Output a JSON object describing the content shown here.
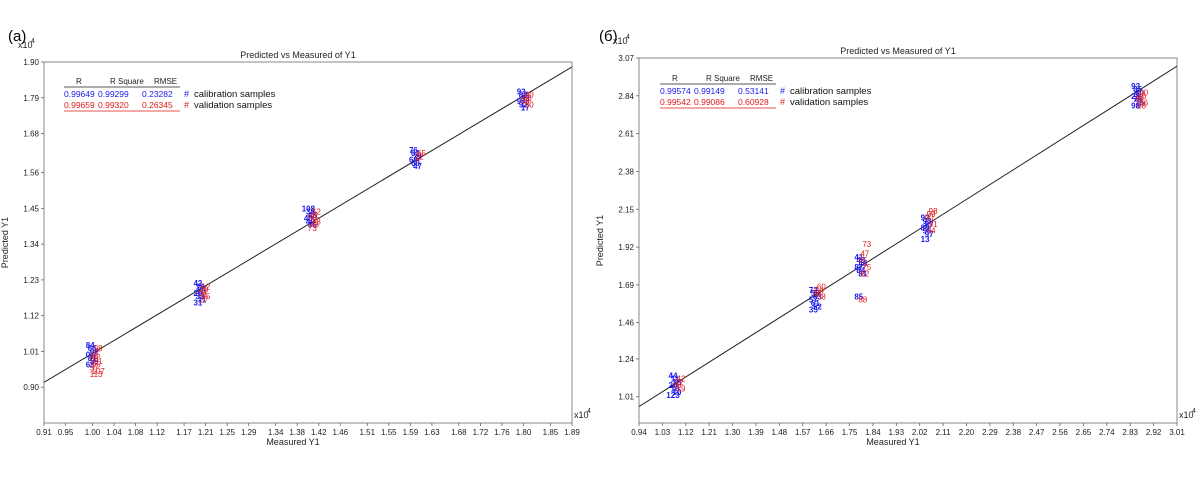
{
  "panels": [
    {
      "label": "(a)",
      "chart": {
        "type": "scatter",
        "title": "Predicted vs Measured of Y1",
        "xlabel": "Measured Y1",
        "ylabel": "Predicted Y1",
        "x_multiplier": "x10",
        "x_multiplier_exp": "4",
        "y_multiplier": "x10",
        "y_multiplier_exp": "4",
        "xlim": [
          0.91,
          1.89
        ],
        "ylim": [
          0.79,
          1.9
        ],
        "x_ticks": [
          "0.91",
          "0.95",
          "1.00",
          "1.04",
          "1.08",
          "1.12",
          "1.17",
          "1.21",
          "1.25",
          "1.29",
          "1.34",
          "1.38",
          "1.42",
          "1.46",
          "1.51",
          "1.55",
          "1.59",
          "1.63",
          "1.68",
          "1.72",
          "1.76",
          "1.80",
          "1.85",
          "1.89"
        ],
        "y_ticks": [
          "0.90",
          "1.01",
          "1.12",
          "1.23",
          "1.34",
          "1.45",
          "1.56",
          "1.68",
          "1.79",
          "1.90"
        ],
        "fit_line": [
          [
            0.91,
            0.915
          ],
          [
            1.89,
            1.885
          ]
        ],
        "stats_header": [
          "R",
          "R Square",
          "RMSE"
        ],
        "stats": [
          {
            "name": "calibration samples",
            "R": "0.99649",
            "R_Square": "0.99299",
            "RMSE": "0.23282",
            "color": "#1a1aee"
          },
          {
            "name": "validation samples",
            "R": "0.99659",
            "R_Square": "0.99320",
            "RMSE": "0.26345",
            "color": "#e01a1a"
          }
        ],
        "legend_symbol": "#",
        "clusters": [
          {
            "x": 1.005,
            "calibration_y": [
              1.03,
              1.02,
              1.01,
              1.0,
              0.99,
              0.98,
              0.97
            ],
            "validation_y": [
              1.02,
              1.0,
              0.99,
              0.98,
              0.97,
              0.96,
              0.95,
              0.94
            ],
            "calibration_labels": [
              "84",
              "66",
              "02",
              "07",
              "81",
              "59",
              "68"
            ],
            "validation_labels": [
              "98",
              "85",
              "88",
              "01",
              "95",
              "57",
              "107",
              "113"
            ]
          },
          {
            "x": 1.205,
            "calibration_y": [
              1.22,
              1.21,
              1.2,
              1.19,
              1.18,
              1.17,
              1.16
            ],
            "validation_y": [
              1.21,
              1.2,
              1.19,
              1.18,
              1.17
            ],
            "calibration_labels": [
              "42",
              "18",
              "24",
              "20",
              "33",
              "11",
              "31"
            ],
            "validation_labels": [
              "12",
              "29",
              "16",
              "35",
              "27"
            ]
          },
          {
            "x": 1.41,
            "calibration_y": [
              1.45,
              1.44,
              1.43,
              1.42,
              1.41,
              1.4
            ],
            "validation_y": [
              1.44,
              1.43,
              1.42,
              1.41,
              1.4,
              1.39
            ],
            "calibration_labels": [
              "108",
              "38",
              "45",
              "40",
              "49",
              "36"
            ],
            "validation_labels": [
              "52",
              "41",
              "56",
              "48",
              "43",
              "73"
            ]
          },
          {
            "x": 1.605,
            "calibration_y": [
              1.63,
              1.62,
              1.61,
              1.6,
              1.59,
              1.58
            ],
            "validation_y": [
              1.62,
              1.61,
              1.6
            ],
            "calibration_labels": [
              "76",
              "62",
              "79",
              "69",
              "60",
              "47"
            ],
            "validation_labels": [
              "65",
              "72",
              "5"
            ]
          },
          {
            "x": 1.805,
            "calibration_y": [
              1.81,
              1.8,
              1.79,
              1.78,
              1.77,
              1.76
            ],
            "validation_y": [
              1.8,
              1.79,
              1.78,
              1.77
            ],
            "calibration_labels": [
              "93",
              "82",
              "83",
              "97",
              "92",
              "17"
            ],
            "validation_labels": [
              "90",
              "86",
              "99",
              "80"
            ]
          }
        ]
      }
    },
    {
      "label": "(б)",
      "chart": {
        "type": "scatter",
        "title": "Predicted vs Measured of Y1",
        "xlabel": "Measured Y1",
        "ylabel": "Predicted Y1",
        "x_multiplier": "x10",
        "x_multiplier_exp": "4",
        "y_multiplier": "x10",
        "y_multiplier_exp": "4",
        "xlim": [
          0.94,
          3.01
        ],
        "ylim": [
          0.85,
          3.07
        ],
        "x_ticks": [
          "0.94",
          "1.03",
          "1.12",
          "1.21",
          "1.30",
          "1.39",
          "1.48",
          "1.57",
          "1.66",
          "1.75",
          "1.84",
          "1.93",
          "2.02",
          "2.11",
          "2.20",
          "2.29",
          "2.38",
          "2.47",
          "2.56",
          "2.65",
          "2.74",
          "2.83",
          "2.92",
          "3.01"
        ],
        "y_ticks": [
          "1.01",
          "1.24",
          "1.46",
          "1.69",
          "1.92",
          "2.15",
          "2.38",
          "2.61",
          "2.84",
          "3.07"
        ],
        "fit_line": [
          [
            0.94,
            0.95
          ],
          [
            3.01,
            3.02
          ]
        ],
        "stats_header": [
          "R",
          "R Square",
          "RMSE"
        ],
        "stats": [
          {
            "name": "calibration samples",
            "R": "0.99574",
            "R_Square": "0.99149",
            "RMSE": "0.53141",
            "color": "#1a1aee"
          },
          {
            "name": "validation samples",
            "R": "0.99542",
            "R_Square": "0.99086",
            "RMSE": "0.60928",
            "color": "#e01a1a"
          }
        ],
        "legend_symbol": "#",
        "clusters": [
          {
            "x": 1.09,
            "calibration_y": [
              1.14,
              1.12,
              1.1,
              1.08,
              1.06,
              1.04,
              1.02
            ],
            "validation_y": [
              1.12,
              1.1,
              1.08,
              1.06
            ],
            "calibration_labels": [
              "44",
              "11",
              "18",
              "20",
              "16",
              "10",
              "123"
            ],
            "validation_labels": [
              "42",
              "12",
              "15",
              "19"
            ]
          },
          {
            "x": 1.63,
            "calibration_y": [
              1.66,
              1.64,
              1.62,
              1.6,
              1.58,
              1.56,
              1.54
            ],
            "validation_y": [
              1.68,
              1.66,
              1.64,
              1.62
            ],
            "calibration_labels": [
              "72",
              "55",
              "63",
              "57",
              "61",
              "52",
              "35"
            ],
            "validation_labels": [
              "60",
              "54",
              "65",
              "58"
            ]
          },
          {
            "x": 1.805,
            "calibration_y": [
              1.86,
              1.84,
              1.82,
              1.8,
              1.78,
              1.76,
              1.62
            ],
            "validation_y": [
              1.94,
              1.88,
              1.84,
              1.8,
              1.76,
              1.6
            ],
            "calibration_labels": [
              "41",
              "48",
              "46",
              "87",
              "84",
              "81",
              "85"
            ],
            "validation_labels": [
              "73",
              "47",
              "45",
              "75",
              "82",
              "88"
            ]
          },
          {
            "x": 2.06,
            "calibration_y": [
              2.1,
              2.08,
              2.06,
              2.04,
              2.02,
              2.0,
              1.97
            ],
            "validation_y": [
              2.14,
              2.12,
              2.1,
              2.06,
              2.02
            ],
            "calibration_labels": [
              "92",
              "93",
              "87",
              "89",
              "95",
              "97",
              "13"
            ],
            "validation_labels": [
              "98",
              "99",
              "90",
              "91",
              "94"
            ]
          },
          {
            "x": 2.87,
            "calibration_y": [
              2.9,
              2.88,
              2.86,
              2.84,
              2.82,
              2.8,
              2.78
            ],
            "validation_y": [
              2.86,
              2.84,
              2.82,
              2.8,
              2.78
            ],
            "calibration_labels": [
              "93",
              "85",
              "80",
              "28",
              "79",
              "75",
              "98"
            ],
            "validation_labels": [
              "90",
              "86",
              "82",
              "76",
              "88"
            ]
          }
        ]
      }
    }
  ],
  "colors": {
    "calibration": "#1a1aee",
    "validation": "#e01a1a",
    "axis": "#555555",
    "fit_line": "#222222"
  }
}
